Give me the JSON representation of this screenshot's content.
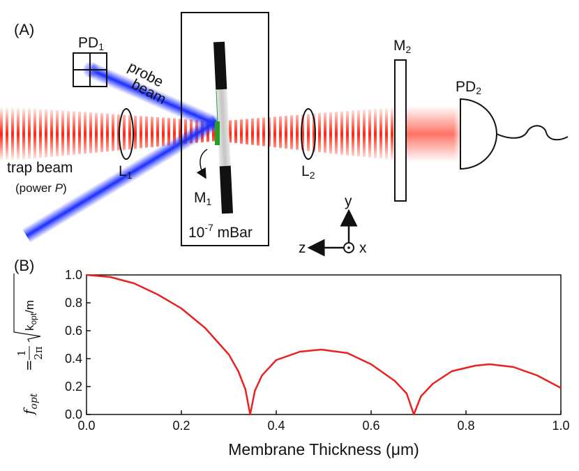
{
  "panel_a": {
    "label": "(A)",
    "pd1": {
      "main": "PD",
      "sub": "1"
    },
    "pd2": {
      "main": "PD",
      "sub": "2"
    },
    "m2": {
      "main": "M",
      "sub": "2"
    },
    "l1": {
      "main": "L",
      "sub": "1"
    },
    "l2": {
      "main": "L",
      "sub": "2"
    },
    "m1": {
      "main": "M",
      "sub": "1"
    },
    "probe_beam": {
      "line1": "probe",
      "line2": "beam"
    },
    "trap_beam": {
      "line1": "trap beam",
      "line2_prefix": "(power ",
      "line2_var": "P",
      "line2_suffix": ")"
    },
    "pressure": {
      "base": "10",
      "exp": "-7",
      "unit": " mBar"
    },
    "axes": {
      "y": "y",
      "z": "z",
      "x": "x"
    },
    "colors": {
      "trap": "#e8332a",
      "probe": "#1f3fe0",
      "membrane": "#22a02a"
    }
  },
  "panel_b": {
    "label": "(B)"
  },
  "chart_data": {
    "type": "line",
    "xlabel": "Membrane Thickness (μm)",
    "ylabel": "f_opt = (1/2π) √(k_opt/m)",
    "ylabel_parts": {
      "f": "f",
      "f_sub": "opt",
      "eq": "=",
      "num": "1",
      "den": "2π",
      "k": "k",
      "k_sub": "opt",
      "slash_m": "/m"
    },
    "xlim": [
      0.0,
      1.0
    ],
    "ylim": [
      0.0,
      1.0
    ],
    "x_ticks": [
      "0.0",
      "0.2",
      "0.4",
      "0.6",
      "0.8",
      "1.0"
    ],
    "y_ticks": [
      "0.0",
      "0.2",
      "0.4",
      "0.6",
      "0.8",
      "1.0"
    ],
    "grid": false,
    "series": [
      {
        "color": "#e8221f",
        "x": [
          0.0,
          0.05,
          0.1,
          0.15,
          0.2,
          0.25,
          0.3,
          0.32,
          0.335,
          0.345,
          0.355,
          0.37,
          0.4,
          0.45,
          0.495,
          0.55,
          0.6,
          0.65,
          0.675,
          0.69,
          0.705,
          0.73,
          0.77,
          0.82,
          0.85,
          0.9,
          0.95,
          1.0
        ],
        "values": [
          1.0,
          0.985,
          0.94,
          0.86,
          0.76,
          0.62,
          0.43,
          0.31,
          0.18,
          0.0,
          0.17,
          0.28,
          0.39,
          0.45,
          0.465,
          0.44,
          0.36,
          0.24,
          0.15,
          0.0,
          0.13,
          0.22,
          0.31,
          0.35,
          0.36,
          0.34,
          0.28,
          0.19
        ]
      }
    ]
  }
}
